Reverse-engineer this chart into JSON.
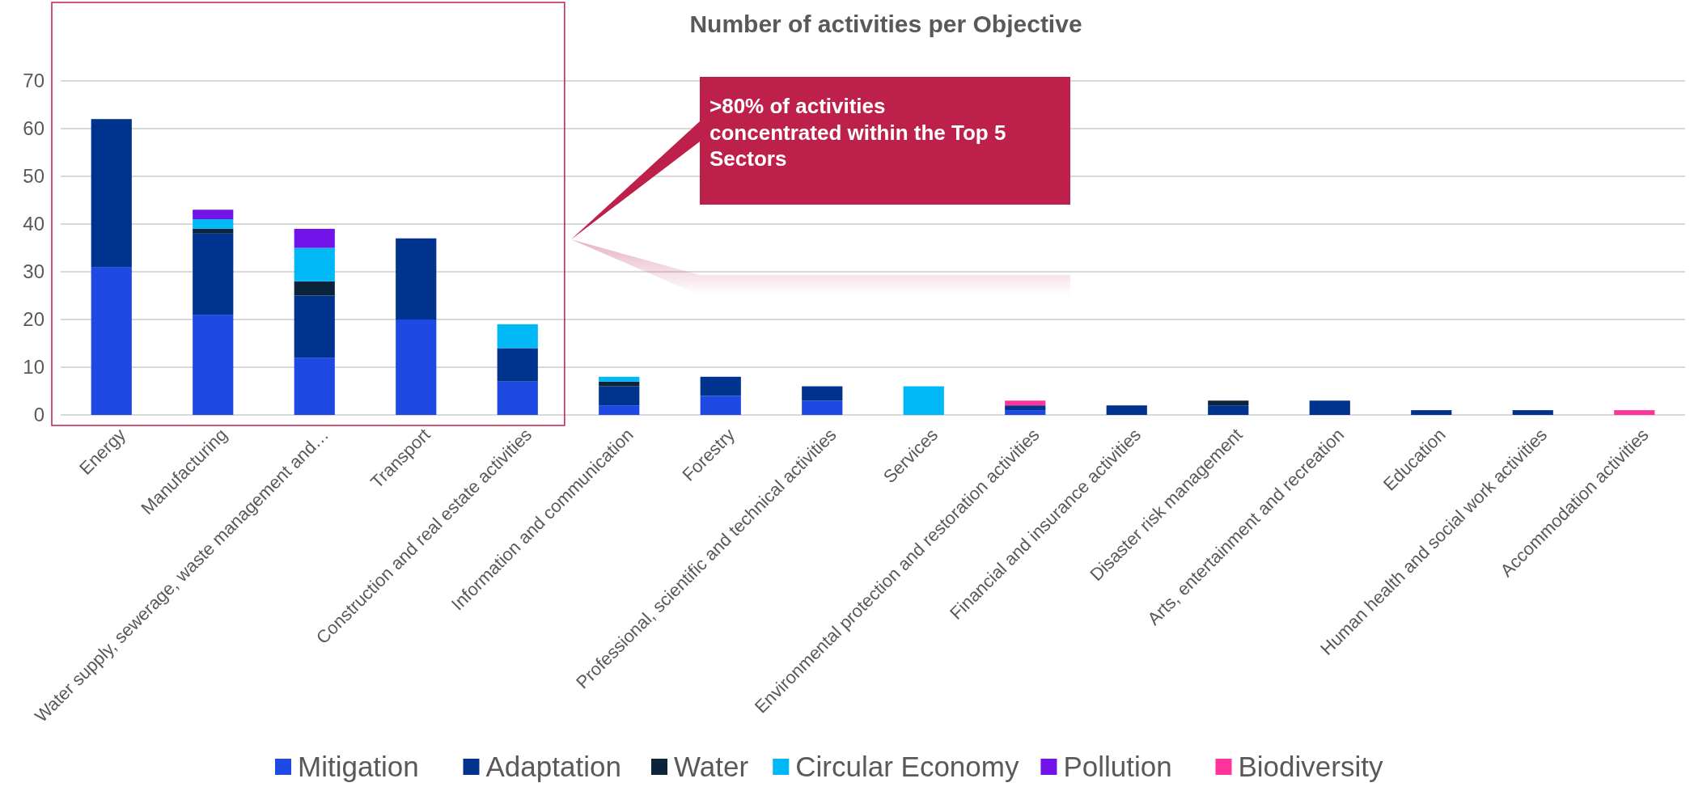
{
  "chart_data": {
    "type": "bar",
    "stacked": true,
    "title": "Number of activities per Objective",
    "categories": [
      "Energy",
      "Manufacturing",
      "Water supply, sewerage, waste management and…",
      "Transport",
      "Construction and real estate activities",
      "Information and communication",
      "Forestry",
      "Professional, scientific and technical activities",
      "Services",
      "Environmental protection and restoration activities",
      "Financial and insurance activities",
      "Disaster risk management",
      "Arts, entertainment and recreation",
      "Education",
      "Human health and social work activities",
      "Accommodation activities"
    ],
    "series": [
      {
        "name": "Mitigation",
        "color": "#1e49e2",
        "values": [
          31,
          21,
          12,
          20,
          7,
          2,
          4,
          3,
          0,
          1,
          0,
          0,
          0,
          0,
          0,
          0
        ]
      },
      {
        "name": "Adaptation",
        "color": "#00338d",
        "values": [
          31,
          17,
          13,
          17,
          7,
          4,
          4,
          3,
          0,
          1,
          2,
          2,
          3,
          1,
          1,
          0
        ]
      },
      {
        "name": "Water",
        "color": "#0c233c",
        "values": [
          0,
          1,
          3,
          0,
          0,
          1,
          0,
          0,
          0,
          0,
          0,
          1,
          0,
          0,
          0,
          0
        ]
      },
      {
        "name": "Circular Economy",
        "color": "#00b8f5",
        "values": [
          0,
          2,
          7,
          0,
          5,
          1,
          0,
          0,
          6,
          0,
          0,
          0,
          0,
          0,
          0,
          0
        ]
      },
      {
        "name": "Pollution",
        "color": "#7213ea",
        "values": [
          0,
          2,
          4,
          0,
          0,
          0,
          0,
          0,
          0,
          0,
          0,
          0,
          0,
          0,
          0,
          0
        ]
      },
      {
        "name": "Biodiversity",
        "color": "#fd349c",
        "values": [
          0,
          0,
          0,
          0,
          0,
          0,
          0,
          0,
          0,
          1,
          0,
          0,
          0,
          0,
          0,
          1
        ]
      }
    ],
    "ylim": [
      0,
      70
    ],
    "yticks": [
      0,
      10,
      20,
      30,
      40,
      50,
      60,
      70
    ],
    "grid": "y",
    "legend": "bottom",
    "annotations": [
      ">80% of activities concentrated within the Top 5 Sectors"
    ]
  }
}
